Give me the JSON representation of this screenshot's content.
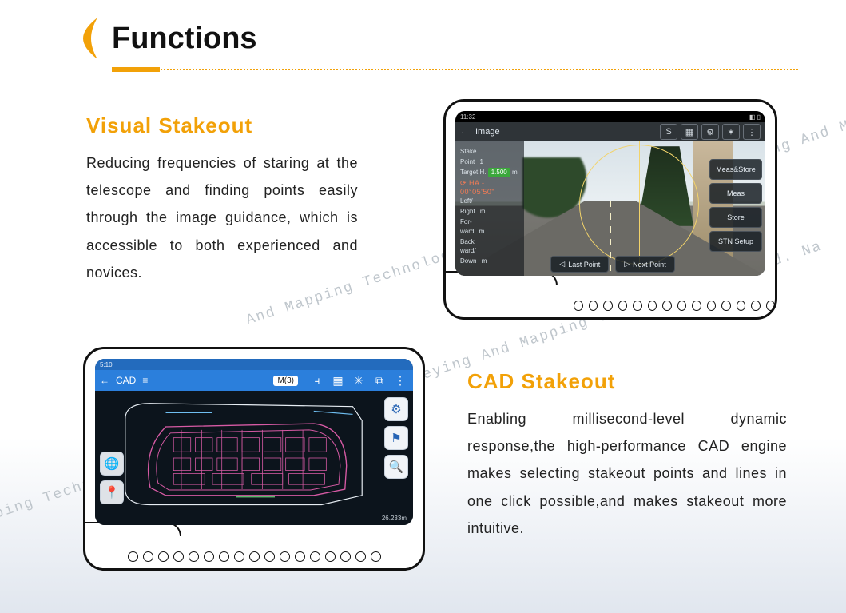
{
  "header": {
    "title": "Functions"
  },
  "accent_color": "#f2a108",
  "sections": {
    "visual": {
      "title": "Visual Stakeout",
      "body": "Reducing frequencies of staring at the telescope and finding points easily through the image guidance, which is accessible to both experienced and novices."
    },
    "cad": {
      "title": "CAD  Stakeout",
      "body": "Enabling millisecond-level dynamic response,the high-performance CAD engine makes selecting stakeout points and lines in one click possible,and makes stakeout more intuitive."
    }
  },
  "watermark_text": "And Mapping Technology Co., Ltd. Nanjing Haoce Surveying And Mapping Technology Co., Ltd. Na",
  "device": {
    "dot_count_d1": 14,
    "dot_count_d2": 17
  },
  "visual_screen": {
    "status_time": "11:32",
    "back": "←",
    "title": "Image",
    "top_icons": [
      "S",
      "▦",
      "⚙",
      "✶",
      "⋮"
    ],
    "panel": {
      "rows": [
        {
          "k": "Stake",
          "v": ""
        },
        {
          "k": "Point",
          "v": "1"
        },
        {
          "k": "Target H.",
          "v": "1.500",
          "unit": "m",
          "green": true
        },
        {
          "k": "HA",
          "v": "- 00°05'50\"",
          "ha": true
        },
        {
          "k": "Left/",
          "v": ""
        },
        {
          "k": "Right",
          "v": "m"
        },
        {
          "k": "For-",
          "v": ""
        },
        {
          "k": "ward",
          "v": "m"
        },
        {
          "k": "Back",
          "v": ""
        },
        {
          "k": "ward/",
          "v": ""
        },
        {
          "k": "Down",
          "v": "m"
        }
      ]
    },
    "right_buttons": [
      "Meas&Store",
      "Meas",
      "Store",
      "STN Setup"
    ],
    "bottom_buttons": [
      {
        "icon": "◁",
        "label": "Last Point"
      },
      {
        "icon": "▷",
        "label": "Next Point"
      }
    ]
  },
  "cad_screen": {
    "status_time": "5:10",
    "back": "←",
    "title": "CAD",
    "menu": "≡",
    "mode_chip": "M(3)",
    "top_icons": [
      "⫞",
      "▦",
      "✳",
      "⧉",
      "⋮"
    ],
    "left_buttons": [
      "🌐",
      "📍"
    ],
    "right_buttons": [
      "⚙",
      "⚑",
      "🔍"
    ],
    "scale": "26.233m",
    "plan": {
      "background": "#0c141c",
      "stroke_main": "#d65aa4",
      "stroke_alt": "#6fbef0",
      "stroke_green": "#6bd07a",
      "stroke_white": "#e7edf3"
    }
  }
}
